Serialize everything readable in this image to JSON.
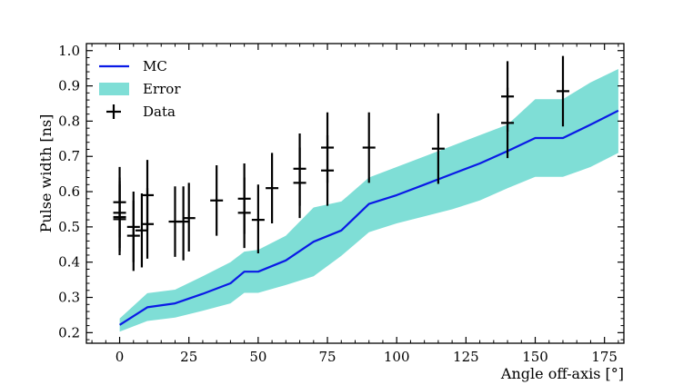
{
  "chart_data": {
    "type": "line",
    "title": "",
    "xlabel": "Angle off-axis [°]",
    "ylabel": "Pulse width [ns]",
    "xlim": [
      -12,
      182
    ],
    "ylim": [
      0.17,
      1.02
    ],
    "xticks": [
      0,
      25,
      50,
      75,
      100,
      125,
      150,
      175
    ],
    "xtick_labels": [
      "0",
      "25",
      "50",
      "75",
      "100",
      "125",
      "150",
      "175"
    ],
    "yticks": [
      0.2,
      0.3,
      0.4,
      0.5,
      0.6,
      0.7,
      0.8,
      0.9,
      1.0
    ],
    "ytick_labels": [
      "0.2",
      "0.3",
      "0.4",
      "0.5",
      "0.6",
      "0.7",
      "0.8",
      "0.9",
      "1.0"
    ],
    "legend": {
      "position": "top-left",
      "entries": [
        {
          "label": "MC",
          "kind": "line",
          "color": "#0a1ae6"
        },
        {
          "label": "Error",
          "kind": "band",
          "color": "#7fded6"
        },
        {
          "label": "Data",
          "kind": "errorbar",
          "color": "#000000"
        }
      ]
    },
    "series": [
      {
        "name": "MC",
        "kind": "line",
        "color": "#0a1ae6",
        "x": [
          0,
          10,
          20,
          30,
          40,
          45,
          50,
          60,
          70,
          80,
          90,
          100,
          110,
          120,
          130,
          140,
          150,
          160,
          170,
          180
        ],
        "y": [
          0.222,
          0.272,
          0.283,
          0.31,
          0.34,
          0.373,
          0.373,
          0.405,
          0.458,
          0.49,
          0.565,
          0.59,
          0.62,
          0.65,
          0.68,
          0.715,
          0.752,
          0.752,
          0.79,
          0.83
        ]
      },
      {
        "name": "Error",
        "kind": "band",
        "color": "#7fded6",
        "x": [
          0,
          10,
          20,
          30,
          40,
          45,
          50,
          60,
          70,
          80,
          90,
          100,
          110,
          120,
          130,
          140,
          150,
          160,
          170,
          180
        ],
        "upper": [
          0.24,
          0.312,
          0.322,
          0.36,
          0.4,
          0.43,
          0.435,
          0.475,
          0.555,
          0.572,
          0.64,
          0.67,
          0.7,
          0.73,
          0.76,
          0.79,
          0.862,
          0.862,
          0.91,
          0.948
        ],
        "lower": [
          0.203,
          0.233,
          0.243,
          0.262,
          0.283,
          0.313,
          0.313,
          0.335,
          0.36,
          0.418,
          0.485,
          0.51,
          0.53,
          0.55,
          0.575,
          0.61,
          0.642,
          0.642,
          0.67,
          0.71
        ]
      },
      {
        "name": "Data",
        "kind": "errorbar",
        "color": "#000000",
        "points": [
          {
            "x": 0,
            "y": 0.57,
            "ylo": 0.47,
            "yhi": 0.67
          },
          {
            "x": 0,
            "y": 0.54,
            "ylo": 0.44,
            "yhi": 0.64
          },
          {
            "x": 0,
            "y": 0.528,
            "ylo": 0.43,
            "yhi": 0.63
          },
          {
            "x": 0,
            "y": 0.522,
            "ylo": 0.42,
            "yhi": 0.62
          },
          {
            "x": 5,
            "y": 0.5,
            "ylo": 0.4,
            "yhi": 0.6
          },
          {
            "x": 5,
            "y": 0.475,
            "ylo": 0.375,
            "yhi": 0.575
          },
          {
            "x": 8,
            "y": 0.49,
            "ylo": 0.385,
            "yhi": 0.595
          },
          {
            "x": 10,
            "y": 0.59,
            "ylo": 0.49,
            "yhi": 0.69
          },
          {
            "x": 10,
            "y": 0.508,
            "ylo": 0.41,
            "yhi": 0.61
          },
          {
            "x": 20,
            "y": 0.515,
            "ylo": 0.415,
            "yhi": 0.615
          },
          {
            "x": 23,
            "y": 0.515,
            "ylo": 0.405,
            "yhi": 0.615
          },
          {
            "x": 25,
            "y": 0.525,
            "ylo": 0.43,
            "yhi": 0.625
          },
          {
            "x": 35,
            "y": 0.575,
            "ylo": 0.475,
            "yhi": 0.675
          },
          {
            "x": 45,
            "y": 0.58,
            "ylo": 0.48,
            "yhi": 0.68
          },
          {
            "x": 45,
            "y": 0.54,
            "ylo": 0.44,
            "yhi": 0.64
          },
          {
            "x": 50,
            "y": 0.52,
            "ylo": 0.425,
            "yhi": 0.62
          },
          {
            "x": 55,
            "y": 0.61,
            "ylo": 0.51,
            "yhi": 0.71
          },
          {
            "x": 65,
            "y": 0.665,
            "ylo": 0.56,
            "yhi": 0.765
          },
          {
            "x": 65,
            "y": 0.625,
            "ylo": 0.525,
            "yhi": 0.725
          },
          {
            "x": 75,
            "y": 0.725,
            "ylo": 0.625,
            "yhi": 0.825
          },
          {
            "x": 75,
            "y": 0.66,
            "ylo": 0.56,
            "yhi": 0.76
          },
          {
            "x": 90,
            "y": 0.725,
            "ylo": 0.625,
            "yhi": 0.825
          },
          {
            "x": 115,
            "y": 0.722,
            "ylo": 0.622,
            "yhi": 0.822
          },
          {
            "x": 140,
            "y": 0.87,
            "ylo": 0.77,
            "yhi": 0.97
          },
          {
            "x": 140,
            "y": 0.795,
            "ylo": 0.695,
            "yhi": 0.895
          },
          {
            "x": 160,
            "y": 0.885,
            "ylo": 0.785,
            "yhi": 0.985
          }
        ]
      }
    ]
  }
}
